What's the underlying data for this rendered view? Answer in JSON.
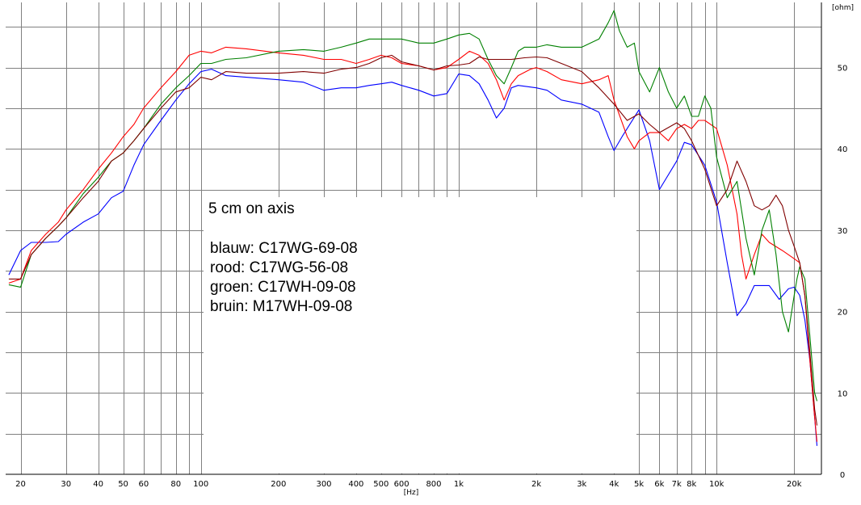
{
  "chart_data": {
    "type": "line",
    "title": "",
    "xlabel": "[Hz]",
    "ylabel": "[ohm]",
    "x_scale": "log",
    "xlim": [
      17.5,
      25500
    ],
    "ylim": [
      0,
      58
    ],
    "grid": true,
    "x_tick_labels": [
      {
        "x": 20,
        "label": "20"
      },
      {
        "x": 30,
        "label": "30"
      },
      {
        "x": 40,
        "label": "40"
      },
      {
        "x": 50,
        "label": "50"
      },
      {
        "x": 60,
        "label": "60"
      },
      {
        "x": 80,
        "label": "80"
      },
      {
        "x": 100,
        "label": "100"
      },
      {
        "x": 200,
        "label": "200"
      },
      {
        "x": 300,
        "label": "300"
      },
      {
        "x": 400,
        "label": "400"
      },
      {
        "x": 500,
        "label": "500"
      },
      {
        "x": 600,
        "label": "600"
      },
      {
        "x": 800,
        "label": "800"
      },
      {
        "x": 1000,
        "label": "1k"
      },
      {
        "x": 2000,
        "label": "2k"
      },
      {
        "x": 3000,
        "label": "3k"
      },
      {
        "x": 4000,
        "label": "4k"
      },
      {
        "x": 5000,
        "label": "5k"
      },
      {
        "x": 6000,
        "label": "6k"
      },
      {
        "x": 7000,
        "label": "7k"
      },
      {
        "x": 8000,
        "label": "8k"
      },
      {
        "x": 10000,
        "label": "10k"
      },
      {
        "x": 20000,
        "label": "20k"
      }
    ],
    "x_gridlines": [
      20,
      30,
      40,
      50,
      60,
      70,
      80,
      90,
      100,
      200,
      300,
      400,
      500,
      600,
      700,
      800,
      900,
      1000,
      2000,
      3000,
      4000,
      5000,
      6000,
      7000,
      8000,
      9000,
      10000,
      20000
    ],
    "y_ticks": [
      0,
      10,
      20,
      30,
      40,
      50
    ],
    "y_gridlines": [
      5,
      10,
      15,
      20,
      25,
      30,
      35,
      40,
      45,
      50,
      55
    ],
    "annotation": {
      "title": "5 cm on axis",
      "lines": [
        "blauw: C17WG-69-08",
        "rood: C17WG-56-08",
        "groen: C17WH-09-08",
        "bruin: M17WH-09-08"
      ]
    },
    "series": [
      {
        "name": "blauw: C17WG-69-08",
        "color": "#0000ff",
        "points": [
          [
            18,
            24.5
          ],
          [
            20,
            27.5
          ],
          [
            22,
            28.5
          ],
          [
            25,
            28.5
          ],
          [
            28,
            28.6
          ],
          [
            30,
            29.5
          ],
          [
            35,
            31
          ],
          [
            40,
            32
          ],
          [
            45,
            34
          ],
          [
            50,
            34.8
          ],
          [
            55,
            38
          ],
          [
            60,
            40.5
          ],
          [
            70,
            43.5
          ],
          [
            80,
            46
          ],
          [
            90,
            48
          ],
          [
            100,
            49.5
          ],
          [
            110,
            49.8
          ],
          [
            125,
            49
          ],
          [
            150,
            48.8
          ],
          [
            200,
            48.5
          ],
          [
            250,
            48.2
          ],
          [
            300,
            47.2
          ],
          [
            350,
            47.5
          ],
          [
            400,
            47.5
          ],
          [
            450,
            47.8
          ],
          [
            500,
            48
          ],
          [
            550,
            48.2
          ],
          [
            600,
            47.8
          ],
          [
            700,
            47.2
          ],
          [
            800,
            46.5
          ],
          [
            900,
            46.8
          ],
          [
            1000,
            49.2
          ],
          [
            1100,
            49
          ],
          [
            1200,
            48
          ],
          [
            1300,
            46
          ],
          [
            1400,
            43.8
          ],
          [
            1500,
            45
          ],
          [
            1600,
            47.5
          ],
          [
            1700,
            47.8
          ],
          [
            2000,
            47.5
          ],
          [
            2200,
            47.2
          ],
          [
            2500,
            46
          ],
          [
            3000,
            45.5
          ],
          [
            3500,
            44.5
          ],
          [
            3800,
            41.5
          ],
          [
            4000,
            39.8
          ],
          [
            4300,
            41.5
          ],
          [
            5000,
            44.8
          ],
          [
            5500,
            41
          ],
          [
            6000,
            35
          ],
          [
            7000,
            38.5
          ],
          [
            7500,
            40.8
          ],
          [
            8000,
            40.5
          ],
          [
            9000,
            38
          ],
          [
            10000,
            33.5
          ],
          [
            11000,
            26
          ],
          [
            12000,
            19.5
          ],
          [
            13000,
            21
          ],
          [
            14000,
            23.2
          ],
          [
            16000,
            23.2
          ],
          [
            17500,
            21.5
          ],
          [
            19000,
            22.8
          ],
          [
            20000,
            23
          ],
          [
            21000,
            22
          ],
          [
            22000,
            19
          ],
          [
            23000,
            14
          ],
          [
            24000,
            7
          ],
          [
            24500,
            3.5
          ]
        ]
      },
      {
        "name": "rood: C17WG-56-08",
        "color": "#ff0000",
        "points": [
          [
            18,
            23.5
          ],
          [
            20,
            24
          ],
          [
            22,
            27.5
          ],
          [
            25,
            29.5
          ],
          [
            28,
            31
          ],
          [
            30,
            32.5
          ],
          [
            35,
            35
          ],
          [
            40,
            37.5
          ],
          [
            45,
            39.5
          ],
          [
            50,
            41.5
          ],
          [
            55,
            43
          ],
          [
            60,
            45
          ],
          [
            70,
            47.5
          ],
          [
            80,
            49.5
          ],
          [
            90,
            51.5
          ],
          [
            100,
            52
          ],
          [
            110,
            51.8
          ],
          [
            125,
            52.5
          ],
          [
            150,
            52.3
          ],
          [
            200,
            51.8
          ],
          [
            250,
            51.5
          ],
          [
            300,
            51
          ],
          [
            350,
            51
          ],
          [
            400,
            50.5
          ],
          [
            450,
            51
          ],
          [
            500,
            51.5
          ],
          [
            550,
            51.2
          ],
          [
            600,
            50.5
          ],
          [
            700,
            50.2
          ],
          [
            800,
            49.7
          ],
          [
            900,
            50
          ],
          [
            1000,
            51
          ],
          [
            1100,
            52
          ],
          [
            1200,
            51.5
          ],
          [
            1300,
            50.5
          ],
          [
            1400,
            48.5
          ],
          [
            1500,
            46
          ],
          [
            1600,
            48
          ],
          [
            1700,
            49
          ],
          [
            1900,
            49.8
          ],
          [
            2000,
            50
          ],
          [
            2200,
            49.5
          ],
          [
            2500,
            48.5
          ],
          [
            3000,
            48
          ],
          [
            3500,
            48.5
          ],
          [
            3800,
            49
          ],
          [
            4000,
            46
          ],
          [
            4500,
            41.5
          ],
          [
            4800,
            40
          ],
          [
            5000,
            41
          ],
          [
            5500,
            42
          ],
          [
            6000,
            42
          ],
          [
            6500,
            41
          ],
          [
            7000,
            42.5
          ],
          [
            7500,
            43
          ],
          [
            8000,
            42.5
          ],
          [
            8500,
            43.5
          ],
          [
            9000,
            43.5
          ],
          [
            10000,
            42.5
          ],
          [
            11000,
            38
          ],
          [
            12000,
            32
          ],
          [
            12500,
            27
          ],
          [
            13000,
            24
          ],
          [
            14000,
            27
          ],
          [
            15000,
            29.5
          ],
          [
            16000,
            28.5
          ],
          [
            18000,
            27.5
          ],
          [
            20000,
            26.5
          ],
          [
            21000,
            26
          ],
          [
            22000,
            22
          ],
          [
            23000,
            14
          ],
          [
            24000,
            7
          ],
          [
            24500,
            4
          ]
        ]
      },
      {
        "name": "groen: C17WH-09-08",
        "color": "#008000",
        "points": [
          [
            18,
            23.3
          ],
          [
            20,
            23
          ],
          [
            22,
            27
          ],
          [
            25,
            29
          ],
          [
            28,
            30.5
          ],
          [
            30,
            31.5
          ],
          [
            35,
            34.5
          ],
          [
            40,
            36.5
          ],
          [
            45,
            38.5
          ],
          [
            50,
            39.5
          ],
          [
            55,
            41
          ],
          [
            60,
            42.5
          ],
          [
            70,
            45.5
          ],
          [
            80,
            47.5
          ],
          [
            90,
            49
          ],
          [
            100,
            50.5
          ],
          [
            110,
            50.5
          ],
          [
            125,
            51
          ],
          [
            150,
            51.2
          ],
          [
            200,
            52
          ],
          [
            250,
            52.2
          ],
          [
            300,
            52
          ],
          [
            350,
            52.5
          ],
          [
            400,
            53
          ],
          [
            450,
            53.5
          ],
          [
            500,
            53.5
          ],
          [
            550,
            53.5
          ],
          [
            600,
            53.5
          ],
          [
            700,
            53
          ],
          [
            800,
            53
          ],
          [
            900,
            53.5
          ],
          [
            1000,
            54
          ],
          [
            1100,
            54.2
          ],
          [
            1200,
            53.5
          ],
          [
            1300,
            51
          ],
          [
            1400,
            49
          ],
          [
            1500,
            48
          ],
          [
            1600,
            50
          ],
          [
            1700,
            52
          ],
          [
            1800,
            52.5
          ],
          [
            2000,
            52.5
          ],
          [
            2200,
            52.8
          ],
          [
            2500,
            52.5
          ],
          [
            3000,
            52.5
          ],
          [
            3500,
            53.5
          ],
          [
            3800,
            55.5
          ],
          [
            4000,
            57
          ],
          [
            4200,
            54.5
          ],
          [
            4500,
            52.5
          ],
          [
            4800,
            53
          ],
          [
            5000,
            49.5
          ],
          [
            5500,
            47
          ],
          [
            6000,
            50
          ],
          [
            6500,
            47
          ],
          [
            7000,
            45
          ],
          [
            7500,
            46.5
          ],
          [
            8000,
            44
          ],
          [
            8500,
            44
          ],
          [
            9000,
            46.5
          ],
          [
            9500,
            45
          ],
          [
            10000,
            39
          ],
          [
            11000,
            34
          ],
          [
            12000,
            36
          ],
          [
            13000,
            29
          ],
          [
            14000,
            24.5
          ],
          [
            15000,
            30
          ],
          [
            16000,
            32.5
          ],
          [
            17000,
            27
          ],
          [
            18000,
            20
          ],
          [
            19000,
            17.5
          ],
          [
            20000,
            22
          ],
          [
            20500,
            24
          ],
          [
            21000,
            25.5
          ],
          [
            22000,
            24
          ],
          [
            23000,
            17
          ],
          [
            24000,
            10
          ],
          [
            24500,
            9
          ]
        ]
      },
      {
        "name": "bruin: M17WH-09-08",
        "color": "#800000",
        "points": [
          [
            18,
            24
          ],
          [
            20,
            24
          ],
          [
            22,
            27
          ],
          [
            25,
            29
          ],
          [
            28,
            30.5
          ],
          [
            30,
            31.5
          ],
          [
            35,
            34
          ],
          [
            40,
            36
          ],
          [
            45,
            38.5
          ],
          [
            50,
            39.5
          ],
          [
            55,
            41
          ],
          [
            60,
            42.5
          ],
          [
            70,
            45
          ],
          [
            80,
            47
          ],
          [
            90,
            47.5
          ],
          [
            100,
            48.8
          ],
          [
            110,
            48.5
          ],
          [
            125,
            49.5
          ],
          [
            150,
            49.3
          ],
          [
            200,
            49.3
          ],
          [
            250,
            49.5
          ],
          [
            300,
            49.3
          ],
          [
            350,
            49.8
          ],
          [
            400,
            50
          ],
          [
            450,
            50.5
          ],
          [
            500,
            51.2
          ],
          [
            550,
            51.5
          ],
          [
            600,
            50.7
          ],
          [
            700,
            50.2
          ],
          [
            800,
            49.7
          ],
          [
            900,
            50.2
          ],
          [
            1000,
            50.3
          ],
          [
            1100,
            50.5
          ],
          [
            1200,
            51.3
          ],
          [
            1300,
            51
          ],
          [
            1400,
            51
          ],
          [
            1500,
            51
          ],
          [
            1600,
            51
          ],
          [
            1800,
            51.2
          ],
          [
            2000,
            51.3
          ],
          [
            2200,
            51.2
          ],
          [
            2500,
            50.5
          ],
          [
            3000,
            49.5
          ],
          [
            3500,
            47.5
          ],
          [
            4000,
            45.5
          ],
          [
            4500,
            43.5
          ],
          [
            5000,
            44.3
          ],
          [
            5500,
            43
          ],
          [
            6000,
            42
          ],
          [
            7000,
            43.2
          ],
          [
            7500,
            42.5
          ],
          [
            8000,
            41
          ],
          [
            9000,
            37.5
          ],
          [
            10000,
            33
          ],
          [
            11000,
            35
          ],
          [
            12000,
            38.5
          ],
          [
            13000,
            36
          ],
          [
            14000,
            33
          ],
          [
            15000,
            32.5
          ],
          [
            16000,
            33
          ],
          [
            17000,
            34.3
          ],
          [
            18000,
            33
          ],
          [
            19000,
            30
          ],
          [
            20000,
            28
          ],
          [
            21000,
            26
          ],
          [
            22000,
            22
          ],
          [
            23000,
            15
          ],
          [
            24000,
            8
          ],
          [
            24500,
            6
          ]
        ]
      }
    ]
  }
}
